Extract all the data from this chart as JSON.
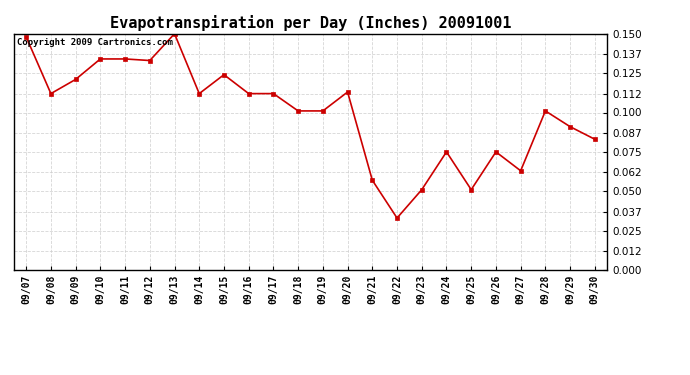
{
  "title": "Evapotranspiration per Day (Inches) 20091001",
  "copyright_text": "Copyright 2009 Cartronics.com",
  "x_labels": [
    "09/07",
    "09/08",
    "09/09",
    "09/10",
    "09/11",
    "09/12",
    "09/13",
    "09/14",
    "09/15",
    "09/16",
    "09/17",
    "09/18",
    "09/19",
    "09/20",
    "09/21",
    "09/22",
    "09/23",
    "09/24",
    "09/25",
    "09/26",
    "09/27",
    "09/28",
    "09/29",
    "09/30"
  ],
  "y_values": [
    0.148,
    0.112,
    0.121,
    0.134,
    0.134,
    0.133,
    0.15,
    0.112,
    0.124,
    0.112,
    0.112,
    0.101,
    0.101,
    0.113,
    0.057,
    0.033,
    0.051,
    0.075,
    0.051,
    0.075,
    0.063,
    0.101,
    0.091,
    0.083
  ],
  "line_color": "#cc0000",
  "marker": "s",
  "marker_size": 2.5,
  "line_width": 1.2,
  "ylim": [
    0.0,
    0.15
  ],
  "yticks": [
    0.0,
    0.012,
    0.025,
    0.037,
    0.05,
    0.062,
    0.075,
    0.087,
    0.1,
    0.112,
    0.125,
    0.137,
    0.15
  ],
  "background_color": "#ffffff",
  "grid_color": "#cccccc",
  "title_fontsize": 11,
  "copyright_fontsize": 6.5,
  "tick_fontsize": 7,
  "ytick_fontsize": 7.5
}
